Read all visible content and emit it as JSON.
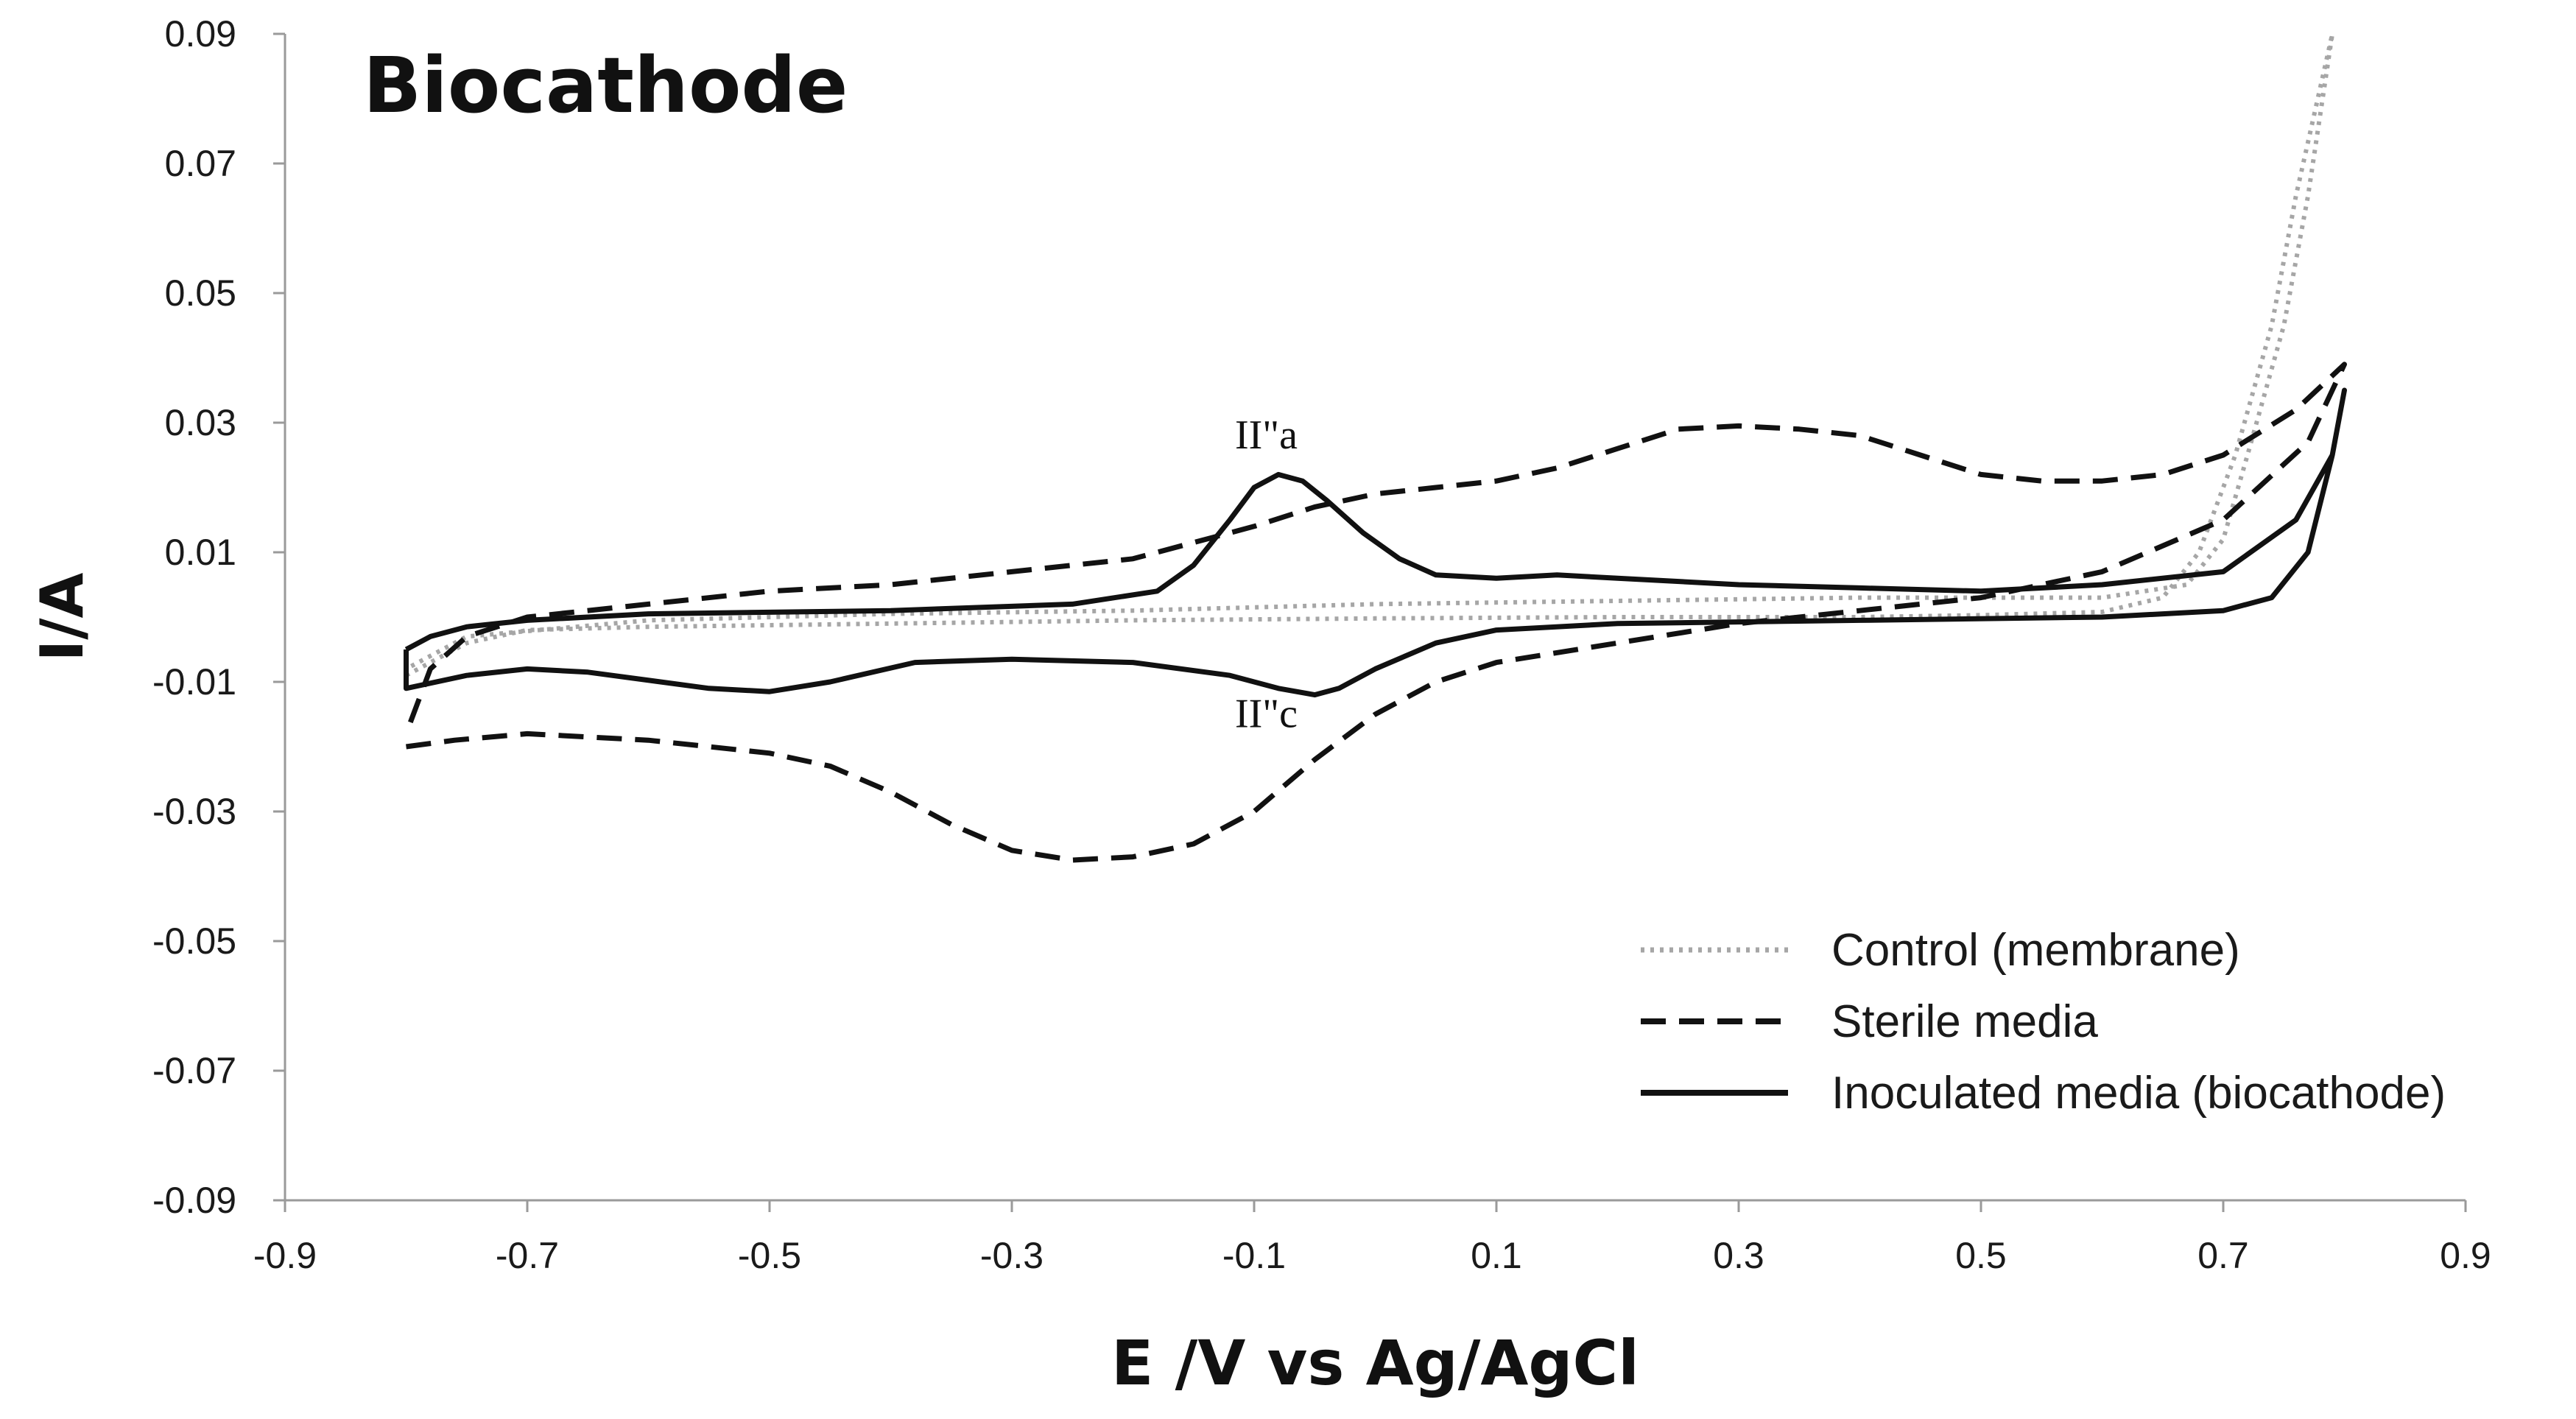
{
  "chart_data": {
    "type": "line",
    "title": "Biocathode",
    "xlabel": "E /V vs Ag/AgCl",
    "ylabel": "I/A",
    "xlim": [
      -0.9,
      0.9
    ],
    "ylim": [
      -0.09,
      0.09
    ],
    "x_ticks": [
      "-0.9",
      "-0.7",
      "-0.5",
      "-0.3",
      "-0.1",
      "0.1",
      "0.3",
      "0.5",
      "0.7",
      "0.9"
    ],
    "y_ticks": [
      "0.09",
      "0.07",
      "0.05",
      "0.03",
      "0.01",
      "-0.01",
      "-0.03",
      "-0.05",
      "-0.07",
      "-0.09"
    ],
    "grid": false,
    "legend_position": "bottom-right",
    "legend": [
      "Control (membrane)",
      "Sterile media",
      "Inoculated media (biocathode)"
    ],
    "annotations": [
      {
        "text": "II\"a",
        "x": -0.09,
        "y": 0.026
      },
      {
        "text": "II\"c",
        "x": -0.09,
        "y": -0.017
      }
    ],
    "series": [
      {
        "name": "Control (membrane)",
        "style": "dotted",
        "color": "#a6a6a6",
        "points": [
          [
            -0.8,
            -0.009
          ],
          [
            -0.75,
            -0.004
          ],
          [
            -0.7,
            -0.002
          ],
          [
            -0.6,
            -0.0015
          ],
          [
            -0.4,
            -0.001
          ],
          [
            -0.2,
            -0.0005
          ],
          [
            0.0,
            -0.0002
          ],
          [
            0.2,
            0.0
          ],
          [
            0.4,
            0.0
          ],
          [
            0.5,
            0.0003
          ],
          [
            0.6,
            0.0008
          ],
          [
            0.65,
            0.003
          ],
          [
            0.68,
            0.01
          ],
          [
            0.71,
            0.025
          ],
          [
            0.74,
            0.045
          ],
          [
            0.76,
            0.065
          ],
          [
            0.79,
            0.09
          ],
          [
            0.77,
            0.065
          ],
          [
            0.75,
            0.045
          ],
          [
            0.72,
            0.025
          ],
          [
            0.7,
            0.012
          ],
          [
            0.67,
            0.005
          ],
          [
            0.6,
            0.003
          ],
          [
            0.4,
            0.003
          ],
          [
            0.2,
            0.0025
          ],
          [
            0.0,
            0.002
          ],
          [
            -0.2,
            0.001
          ],
          [
            -0.4,
            0.0005
          ],
          [
            -0.6,
            -0.0005
          ],
          [
            -0.75,
            -0.003
          ],
          [
            -0.8,
            -0.008
          ]
        ]
      },
      {
        "name": "Sterile media",
        "style": "dashed",
        "color": "#111111",
        "points": [
          [
            -0.8,
            -0.02
          ],
          [
            -0.76,
            -0.019
          ],
          [
            -0.7,
            -0.018
          ],
          [
            -0.6,
            -0.019
          ],
          [
            -0.5,
            -0.021
          ],
          [
            -0.45,
            -0.023
          ],
          [
            -0.4,
            -0.027
          ],
          [
            -0.35,
            -0.032
          ],
          [
            -0.3,
            -0.036
          ],
          [
            -0.25,
            -0.0375
          ],
          [
            -0.2,
            -0.037
          ],
          [
            -0.15,
            -0.035
          ],
          [
            -0.1,
            -0.03
          ],
          [
            -0.05,
            -0.022
          ],
          [
            0.0,
            -0.015
          ],
          [
            0.05,
            -0.01
          ],
          [
            0.1,
            -0.007
          ],
          [
            0.2,
            -0.004
          ],
          [
            0.3,
            -0.001
          ],
          [
            0.4,
            0.001
          ],
          [
            0.5,
            0.003
          ],
          [
            0.6,
            0.007
          ],
          [
            0.7,
            0.015
          ],
          [
            0.77,
            0.027
          ],
          [
            0.8,
            0.039
          ],
          [
            0.76,
            0.032
          ],
          [
            0.7,
            0.025
          ],
          [
            0.65,
            0.022
          ],
          [
            0.6,
            0.021
          ],
          [
            0.55,
            0.021
          ],
          [
            0.5,
            0.022
          ],
          [
            0.45,
            0.025
          ],
          [
            0.4,
            0.028
          ],
          [
            0.35,
            0.029
          ],
          [
            0.3,
            0.0295
          ],
          [
            0.25,
            0.029
          ],
          [
            0.2,
            0.026
          ],
          [
            0.15,
            0.023
          ],
          [
            0.1,
            0.021
          ],
          [
            0.05,
            0.02
          ],
          [
            0.0,
            0.019
          ],
          [
            -0.05,
            0.017
          ],
          [
            -0.1,
            0.014
          ],
          [
            -0.2,
            0.009
          ],
          [
            -0.3,
            0.007
          ],
          [
            -0.4,
            0.005
          ],
          [
            -0.5,
            0.004
          ],
          [
            -0.6,
            0.002
          ],
          [
            -0.7,
            0.0
          ],
          [
            -0.75,
            -0.003
          ],
          [
            -0.78,
            -0.008
          ],
          [
            -0.8,
            -0.018
          ]
        ]
      },
      {
        "name": "Inoculated media (biocathode)",
        "style": "solid",
        "color": "#111111",
        "points": [
          [
            -0.8,
            -0.005
          ],
          [
            -0.78,
            -0.003
          ],
          [
            -0.75,
            -0.0015
          ],
          [
            -0.7,
            -0.0005
          ],
          [
            -0.6,
            0.0005
          ],
          [
            -0.4,
            0.001
          ],
          [
            -0.25,
            0.002
          ],
          [
            -0.18,
            0.004
          ],
          [
            -0.15,
            0.008
          ],
          [
            -0.12,
            0.015
          ],
          [
            -0.1,
            0.02
          ],
          [
            -0.08,
            0.022
          ],
          [
            -0.06,
            0.021
          ],
          [
            -0.04,
            0.018
          ],
          [
            -0.01,
            0.013
          ],
          [
            0.02,
            0.009
          ],
          [
            0.05,
            0.0065
          ],
          [
            0.1,
            0.006
          ],
          [
            0.15,
            0.0065
          ],
          [
            0.2,
            0.006
          ],
          [
            0.3,
            0.005
          ],
          [
            0.4,
            0.0045
          ],
          [
            0.5,
            0.004
          ],
          [
            0.6,
            0.005
          ],
          [
            0.7,
            0.007
          ],
          [
            0.76,
            0.015
          ],
          [
            0.79,
            0.025
          ],
          [
            0.8,
            0.035
          ],
          [
            0.79,
            0.025
          ],
          [
            0.77,
            0.01
          ],
          [
            0.74,
            0.003
          ],
          [
            0.7,
            0.001
          ],
          [
            0.6,
            0.0
          ],
          [
            0.4,
            -0.0005
          ],
          [
            0.2,
            -0.001
          ],
          [
            0.1,
            -0.002
          ],
          [
            0.05,
            -0.004
          ],
          [
            0.0,
            -0.008
          ],
          [
            -0.03,
            -0.011
          ],
          [
            -0.05,
            -0.012
          ],
          [
            -0.08,
            -0.011
          ],
          [
            -0.12,
            -0.009
          ],
          [
            -0.2,
            -0.007
          ],
          [
            -0.3,
            -0.0065
          ],
          [
            -0.38,
            -0.007
          ],
          [
            -0.45,
            -0.01
          ],
          [
            -0.5,
            -0.0115
          ],
          [
            -0.55,
            -0.011
          ],
          [
            -0.65,
            -0.0085
          ],
          [
            -0.7,
            -0.008
          ],
          [
            -0.75,
            -0.009
          ],
          [
            -0.8,
            -0.011
          ],
          [
            -0.8,
            -0.005
          ]
        ]
      }
    ]
  }
}
